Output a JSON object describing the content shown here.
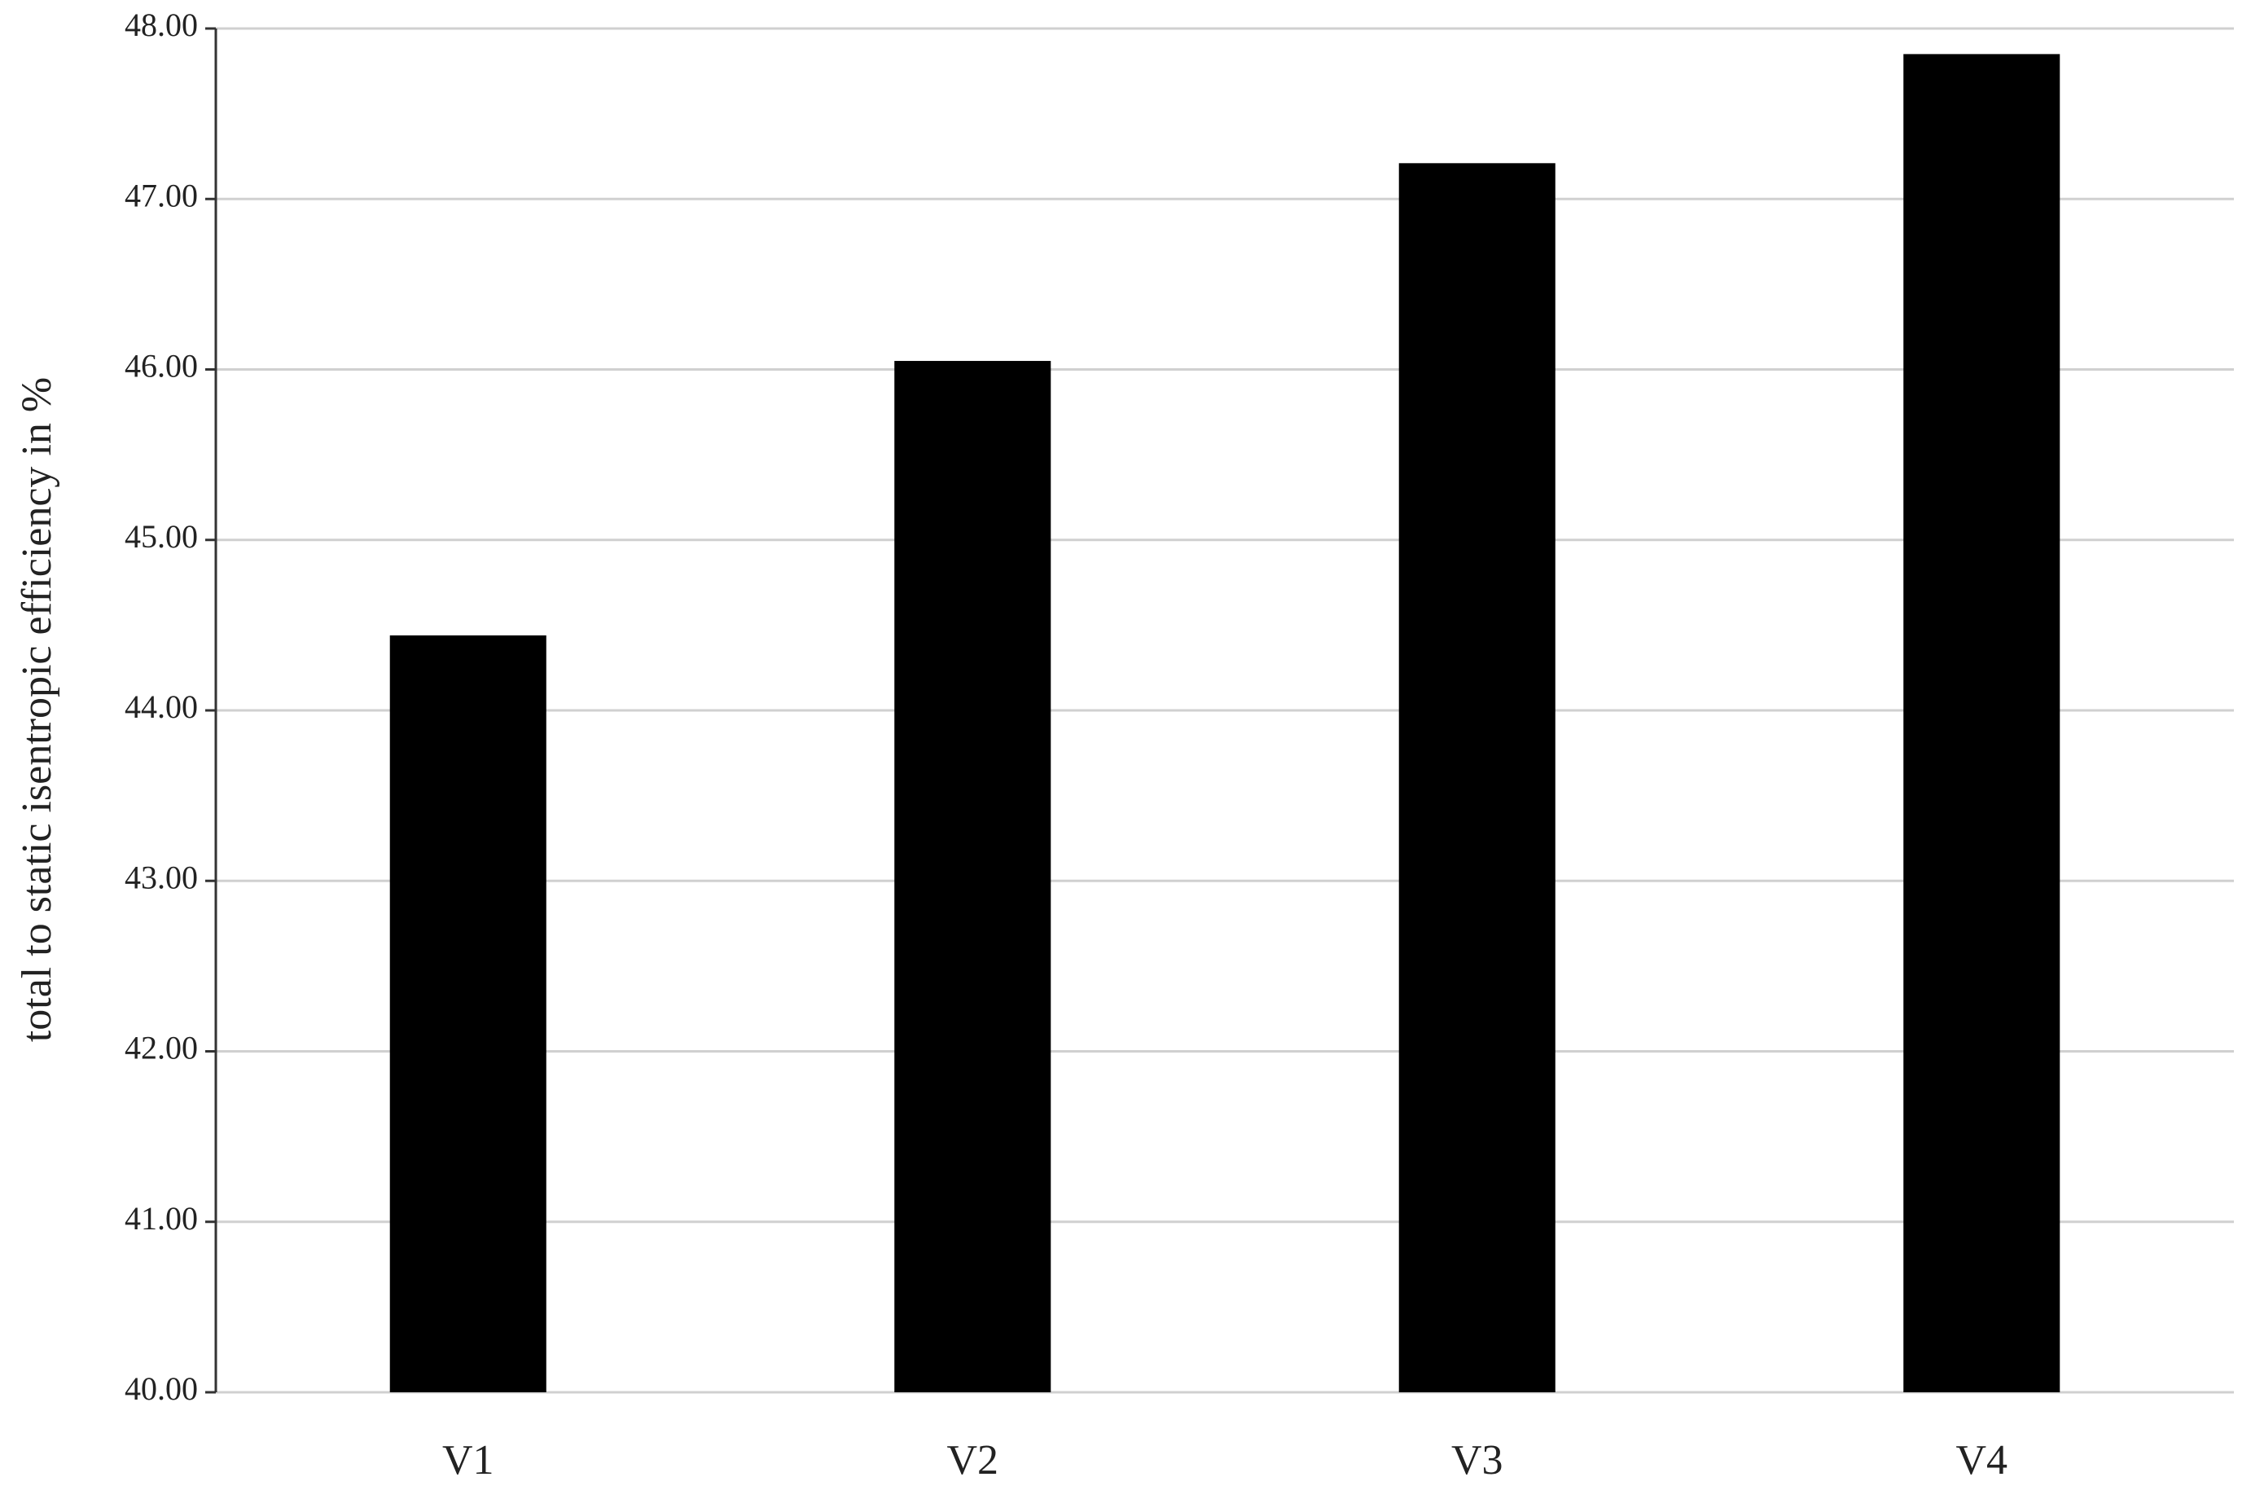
{
  "chart_data": {
    "type": "bar",
    "y_label": "total to static isentropic efficiency in %",
    "categories": [
      "V1",
      "V2",
      "V3",
      "V4"
    ],
    "values": [
      44.44,
      46.05,
      47.21,
      47.85
    ],
    "color": "#000000",
    "ylim": [
      40,
      48
    ],
    "yticks": [
      {
        "value": 40,
        "label": "40.00"
      },
      {
        "value": 41,
        "label": "41.00"
      },
      {
        "value": 42,
        "label": "42.00"
      },
      {
        "value": 43,
        "label": "43.00"
      },
      {
        "value": 44,
        "label": "44.00"
      },
      {
        "value": 45,
        "label": "45.00"
      },
      {
        "value": 46,
        "label": "46.00"
      },
      {
        "value": 47,
        "label": "47.00"
      },
      {
        "value": 48,
        "label": "48.00"
      }
    ],
    "grid": true
  }
}
